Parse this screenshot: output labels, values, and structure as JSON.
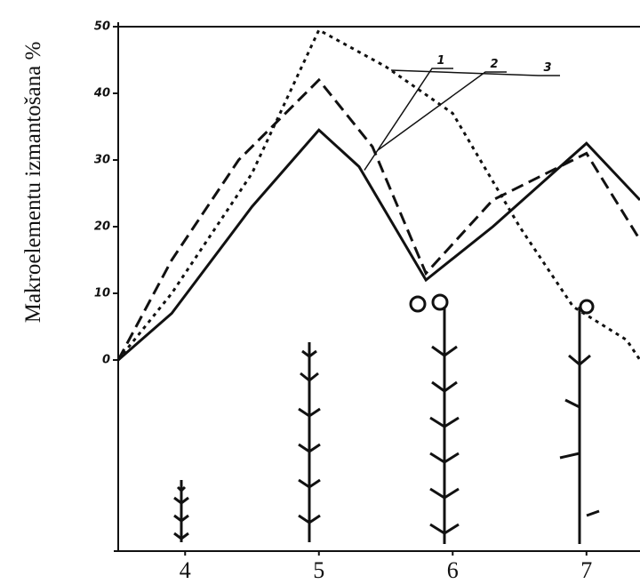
{
  "chart_data": {
    "type": "line",
    "y_label": "Makroelementu izmantošana %",
    "xlim": [
      3.5,
      7.4
    ],
    "xticks": [
      4,
      5,
      6,
      7
    ],
    "ylim": [
      0,
      50
    ],
    "yticks": [
      0,
      10,
      20,
      30,
      40,
      50
    ],
    "series": [
      {
        "name": "1",
        "color": "#111111",
        "style": "solid",
        "x": [
          3.5,
          3.9,
          4.5,
          5.0,
          5.3,
          5.8,
          6.3,
          7.0,
          7.4
        ],
        "values": [
          0,
          7,
          23,
          34.5,
          29,
          12,
          20,
          32.5,
          24
        ]
      },
      {
        "name": "2",
        "color": "#111111",
        "style": "dashed",
        "x": [
          3.5,
          3.9,
          4.4,
          5.0,
          5.4,
          5.8,
          6.3,
          7.0,
          7.4
        ],
        "values": [
          0,
          15,
          30,
          42,
          32,
          13,
          24,
          31,
          18
        ]
      },
      {
        "name": "3",
        "color": "#111111",
        "style": "dotted",
        "x": [
          3.5,
          3.9,
          4.5,
          5.0,
          5.5,
          6.0,
          6.5,
          6.9,
          7.3,
          7.4
        ],
        "values": [
          0,
          10,
          28,
          49.5,
          44,
          37,
          20,
          8,
          3,
          0
        ]
      }
    ]
  }
}
